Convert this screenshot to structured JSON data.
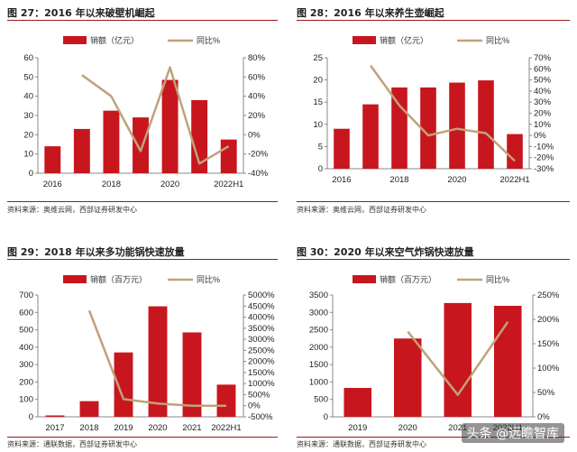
{
  "colors": {
    "bar": "#c8161e",
    "line": "#c0a27a",
    "rule": "#9a1a1a"
  },
  "panels": [
    {
      "title": "图 27：2016 年以来破壁机崛起",
      "source": "资料来源：奥维云网，西部证券研发中心"
    },
    {
      "title": "图 28：2016 年以来养生壶崛起",
      "source": "资料来源：奥维云网，西部证券研发中心"
    },
    {
      "title": "图 29：2018 年以来多功能锅快速放量",
      "source": "资料来源：通联数据，西部证券研发中心"
    },
    {
      "title": "图 30：2020 年以来空气炸锅快速放量",
      "source": "资料来源：通联数据，西部证券研发中心"
    }
  ],
  "watermark": "头条 @远瞻智库",
  "chart_data": [
    {
      "type": "bar",
      "categories": [
        "2016",
        "2017",
        "2018",
        "2019",
        "2020",
        "2021",
        "2022H1"
      ],
      "x_tick_labels": [
        "2016",
        "2018",
        "2020",
        "2022H1"
      ],
      "series": [
        {
          "name": "销额（亿元）",
          "type": "bar",
          "axis": "left",
          "values": [
            14,
            23,
            32.5,
            29,
            48.5,
            38,
            17.5
          ]
        },
        {
          "name": "同比%",
          "type": "line",
          "axis": "right",
          "values": [
            null,
            62,
            40,
            -17,
            70,
            -30,
            -12
          ]
        }
      ],
      "ylim_left": [
        0,
        60
      ],
      "yticks_left": [
        0,
        10,
        20,
        30,
        40,
        50,
        60
      ],
      "ylim_right": [
        -40,
        80
      ],
      "yticks_right": [
        -40,
        -20,
        0,
        20,
        40,
        60,
        80
      ],
      "right_suffix": "%",
      "legend": "top"
    },
    {
      "type": "bar",
      "categories": [
        "2016",
        "2017",
        "2018",
        "2019",
        "2020",
        "2021",
        "2022H1"
      ],
      "x_tick_labels": [
        "2016",
        "2018",
        "2020",
        "2022H1"
      ],
      "series": [
        {
          "name": "销额（亿元）",
          "type": "bar",
          "axis": "left",
          "values": [
            9,
            14.5,
            18.3,
            18.3,
            19.4,
            19.9,
            7.8
          ]
        },
        {
          "name": "同比%",
          "type": "line",
          "axis": "right",
          "values": [
            null,
            63,
            27,
            0,
            6,
            2,
            -23
          ]
        }
      ],
      "ylim_left": [
        0,
        25
      ],
      "yticks_left": [
        0,
        5,
        10,
        15,
        20,
        25
      ],
      "ylim_right": [
        -30,
        70
      ],
      "yticks_right": [
        -30,
        -20,
        -10,
        0,
        10,
        20,
        30,
        40,
        50,
        60,
        70
      ],
      "right_suffix": "%",
      "legend": "top"
    },
    {
      "type": "bar",
      "categories": [
        "2017",
        "2018",
        "2019",
        "2020",
        "2021",
        "2022H1"
      ],
      "x_tick_labels": [
        "2017",
        "2018",
        "2019",
        "2020",
        "2021",
        "2022H1"
      ],
      "series": [
        {
          "name": "销额（百万元）",
          "type": "bar",
          "axis": "left",
          "values": [
            8,
            90,
            370,
            635,
            485,
            185
          ]
        },
        {
          "name": "同比%",
          "type": "line",
          "axis": "right",
          "values": [
            null,
            4300,
            300,
            100,
            0,
            0
          ]
        }
      ],
      "ylim_left": [
        0,
        700
      ],
      "yticks_left": [
        0,
        100,
        200,
        300,
        400,
        500,
        600,
        700
      ],
      "ylim_right": [
        -500,
        5000
      ],
      "yticks_right": [
        -500,
        0,
        500,
        1000,
        1500,
        2000,
        2500,
        3000,
        3500,
        4000,
        4500,
        5000
      ],
      "right_suffix": "%",
      "legend": "top"
    },
    {
      "type": "bar",
      "categories": [
        "2019",
        "2020",
        "2021",
        "2022H1"
      ],
      "x_tick_labels": [
        "2019",
        "2020",
        "2021",
        "2022H1"
      ],
      "series": [
        {
          "name": "销额（百万元）",
          "type": "bar",
          "axis": "left",
          "values": [
            830,
            2250,
            3270,
            3190
          ]
        },
        {
          "name": "同比%",
          "type": "line",
          "axis": "right",
          "values": [
            null,
            175,
            45,
            195
          ]
        }
      ],
      "ylim_left": [
        0,
        3500
      ],
      "yticks_left": [
        0,
        500,
        1000,
        1500,
        2000,
        2500,
        3000,
        3500
      ],
      "ylim_right": [
        0,
        250
      ],
      "yticks_right": [
        0,
        50,
        100,
        150,
        200,
        250
      ],
      "right_suffix": "%",
      "legend": "top"
    }
  ]
}
